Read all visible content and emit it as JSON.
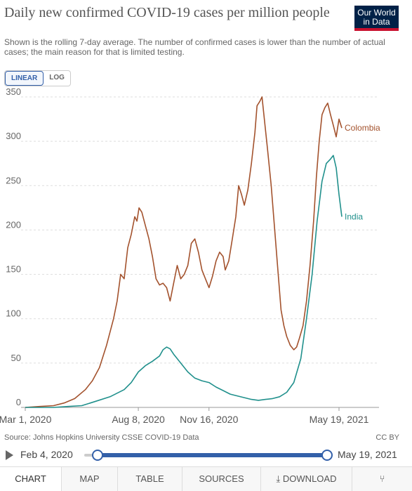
{
  "header": {
    "title": "Daily new confirmed COVID-19 cases per million people",
    "subtitle": "Shown is the rolling 7-day average. The number of confirmed cases is lower than the number of actual cases; the main reason for that is limited testing.",
    "logo_line1": "Our World",
    "logo_line2": "in Data"
  },
  "scale_toggle": {
    "linear": "LINEAR",
    "log": "LOG"
  },
  "chart_data": {
    "type": "line",
    "title": "Daily new confirmed COVID-19 cases per million people",
    "ylim": [
      0,
      350
    ],
    "yticks": [
      0,
      50,
      100,
      150,
      200,
      250,
      300,
      350
    ],
    "xticks": [
      {
        "label": "Mar 1, 2020",
        "day": 0
      },
      {
        "label": "Aug 8, 2020",
        "day": 160
      },
      {
        "label": "Nov 16, 2020",
        "day": 260
      },
      {
        "label": "May 19, 2021",
        "day": 444
      }
    ],
    "grid": true,
    "series": [
      {
        "name": "Colombia",
        "color": "#a3522d",
        "points": [
          [
            0,
            0
          ],
          [
            20,
            1
          ],
          [
            40,
            2
          ],
          [
            55,
            5
          ],
          [
            70,
            10
          ],
          [
            85,
            20
          ],
          [
            95,
            30
          ],
          [
            105,
            45
          ],
          [
            115,
            70
          ],
          [
            125,
            100
          ],
          [
            130,
            120
          ],
          [
            135,
            150
          ],
          [
            140,
            145
          ],
          [
            145,
            180
          ],
          [
            150,
            195
          ],
          [
            155,
            215
          ],
          [
            158,
            210
          ],
          [
            161,
            225
          ],
          [
            165,
            220
          ],
          [
            170,
            205
          ],
          [
            175,
            190
          ],
          [
            180,
            170
          ],
          [
            185,
            145
          ],
          [
            190,
            138
          ],
          [
            195,
            140
          ],
          [
            200,
            135
          ],
          [
            205,
            120
          ],
          [
            210,
            140
          ],
          [
            215,
            160
          ],
          [
            220,
            145
          ],
          [
            225,
            150
          ],
          [
            230,
            160
          ],
          [
            235,
            185
          ],
          [
            240,
            190
          ],
          [
            245,
            175
          ],
          [
            250,
            155
          ],
          [
            255,
            145
          ],
          [
            260,
            135
          ],
          [
            265,
            148
          ],
          [
            270,
            165
          ],
          [
            275,
            175
          ],
          [
            280,
            170
          ],
          [
            283,
            155
          ],
          [
            288,
            165
          ],
          [
            293,
            190
          ],
          [
            298,
            215
          ],
          [
            302,
            250
          ],
          [
            306,
            240
          ],
          [
            310,
            228
          ],
          [
            315,
            245
          ],
          [
            320,
            275
          ],
          [
            325,
            310
          ],
          [
            328,
            340
          ],
          [
            332,
            345
          ],
          [
            335,
            350
          ],
          [
            339,
            320
          ],
          [
            343,
            290
          ],
          [
            348,
            250
          ],
          [
            353,
            200
          ],
          [
            358,
            150
          ],
          [
            362,
            110
          ],
          [
            366,
            92
          ],
          [
            370,
            80
          ],
          [
            375,
            70
          ],
          [
            380,
            65
          ],
          [
            384,
            68
          ],
          [
            388,
            78
          ],
          [
            393,
            92
          ],
          [
            398,
            120
          ],
          [
            403,
            160
          ],
          [
            408,
            210
          ],
          [
            412,
            260
          ],
          [
            416,
            300
          ],
          [
            420,
            330
          ],
          [
            424,
            338
          ],
          [
            428,
            343
          ],
          [
            432,
            330
          ],
          [
            436,
            318
          ],
          [
            440,
            305
          ],
          [
            444,
            325
          ],
          [
            448,
            315
          ]
        ]
      },
      {
        "name": "India",
        "color": "#20908c",
        "points": [
          [
            0,
            0
          ],
          [
            40,
            0
          ],
          [
            60,
            1
          ],
          [
            80,
            2
          ],
          [
            100,
            7
          ],
          [
            120,
            12
          ],
          [
            140,
            20
          ],
          [
            150,
            28
          ],
          [
            160,
            40
          ],
          [
            170,
            47
          ],
          [
            180,
            52
          ],
          [
            190,
            58
          ],
          [
            195,
            65
          ],
          [
            200,
            68
          ],
          [
            205,
            66
          ],
          [
            210,
            60
          ],
          [
            220,
            50
          ],
          [
            230,
            40
          ],
          [
            240,
            33
          ],
          [
            250,
            30
          ],
          [
            260,
            28
          ],
          [
            270,
            23
          ],
          [
            280,
            19
          ],
          [
            290,
            15
          ],
          [
            300,
            13
          ],
          [
            310,
            11
          ],
          [
            320,
            9
          ],
          [
            330,
            8
          ],
          [
            340,
            9
          ],
          [
            350,
            10
          ],
          [
            360,
            12
          ],
          [
            370,
            17
          ],
          [
            380,
            28
          ],
          [
            390,
            55
          ],
          [
            398,
            100
          ],
          [
            406,
            150
          ],
          [
            413,
            210
          ],
          [
            420,
            255
          ],
          [
            426,
            275
          ],
          [
            432,
            280
          ],
          [
            436,
            284
          ],
          [
            440,
            270
          ],
          [
            444,
            240
          ],
          [
            448,
            215
          ]
        ]
      }
    ],
    "colors": {
      "grid": "#dddddd",
      "axis": "#999999"
    }
  },
  "footer": {
    "source": "Source: Johns Hopkins University CSSE COVID-19 Data",
    "license": "CC BY"
  },
  "timeline": {
    "start": "Feb 4, 2020",
    "end": "May 19, 2021"
  },
  "tabs": [
    "CHART",
    "MAP",
    "TABLE",
    "SOURCES",
    "DOWNLOAD"
  ],
  "tab_icons": {
    "download": "download-icon",
    "share": "share-icon"
  }
}
